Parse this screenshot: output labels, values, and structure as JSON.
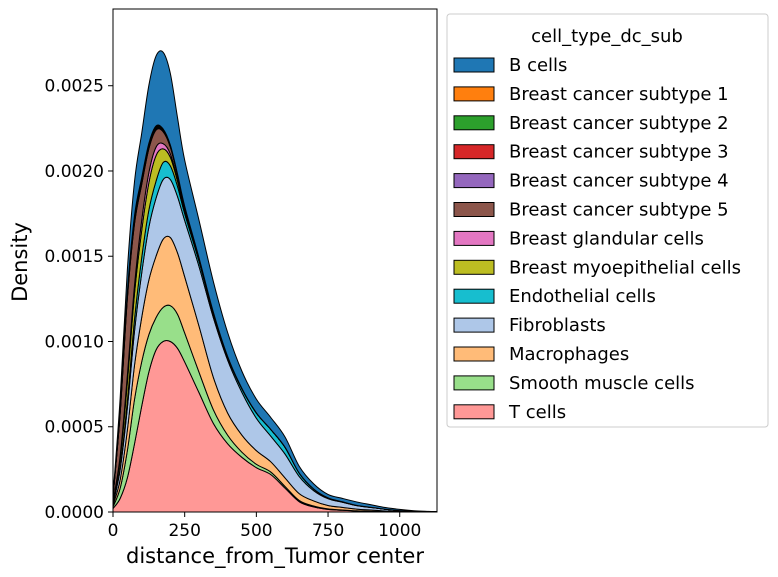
{
  "chart_data": {
    "type": "area",
    "stacked": true,
    "xlabel": "distance_from_Tumor center",
    "ylabel": "Density",
    "xlim": [
      0,
      1130
    ],
    "ylim": [
      0,
      0.00295
    ],
    "x_ticks": [
      0,
      250,
      500,
      750,
      1000
    ],
    "y_ticks": [
      0.0,
      0.0005,
      0.001,
      0.0015,
      0.002,
      0.0025
    ],
    "x_tick_labels": [
      "0",
      "250",
      "500",
      "750",
      "1000"
    ],
    "y_tick_labels": [
      "0.0000",
      "0.0005",
      "0.0010",
      "0.0015",
      "0.0020",
      "0.0025"
    ],
    "legend_title": "cell_type_dc_sub",
    "legend_position": "outside-right",
    "x": [
      0,
      25,
      50,
      75,
      100,
      125,
      150,
      175,
      200,
      225,
      250,
      300,
      350,
      400,
      450,
      500,
      550,
      600,
      650,
      700,
      750,
      800,
      850,
      900,
      950,
      1000,
      1050,
      1100,
      1130
    ],
    "series": [
      {
        "name": "T cells",
        "color": "#ff9896",
        "values": [
          2e-05,
          8e-05,
          0.0002,
          0.0004,
          0.00062,
          0.00082,
          0.00095,
          0.001,
          0.001,
          0.00096,
          0.00088,
          0.0007,
          0.00052,
          0.0004,
          0.00032,
          0.00026,
          0.00022,
          0.00014,
          6e-05,
          3e-05,
          1.5e-05,
          1e-05,
          6e-06,
          4e-06,
          2e-06,
          1e-06,
          5e-07,
          2e-07,
          1e-07
        ]
      },
      {
        "name": "Smooth muscle cells",
        "color": "#98df8a",
        "values": [
          1e-05,
          6e-05,
          0.00016,
          0.00026,
          0.00026,
          0.00022,
          0.00019,
          0.0002,
          0.00021,
          0.0002,
          0.00017,
          0.00012,
          8e-05,
          5e-05,
          3e-05,
          2e-05,
          1.5e-05,
          1e-05,
          7e-06,
          5e-06,
          3e-06,
          2e-06,
          1e-06,
          5e-07,
          2e-07,
          1e-07,
          0.0,
          0.0,
          0.0
        ]
      },
      {
        "name": "Macrophages",
        "color": "#ffbb78",
        "values": [
          1e-05,
          5e-05,
          0.00012,
          0.0002,
          0.00026,
          0.00032,
          0.00036,
          0.0004,
          0.0004,
          0.00036,
          0.00033,
          0.00027,
          0.00019,
          0.00013,
          0.0001,
          8e-05,
          6e-05,
          5e-05,
          4e-05,
          3e-05,
          2e-05,
          1.5e-05,
          1e-05,
          7e-06,
          4e-06,
          2e-06,
          1e-06,
          5e-07,
          2e-07
        ]
      },
      {
        "name": "Fibroblasts",
        "color": "#aec7e8",
        "values": [
          1e-05,
          6e-05,
          0.00013,
          0.0002,
          0.00026,
          0.00031,
          0.00034,
          0.00035,
          0.00034,
          0.00033,
          0.00033,
          0.00035,
          0.00035,
          0.00031,
          0.00025,
          0.00019,
          0.00015,
          0.00014,
          0.0001,
          6e-05,
          4e-05,
          3e-05,
          2e-05,
          1.5e-05,
          1e-05,
          5e-06,
          2e-06,
          1e-06,
          5e-07
        ]
      },
      {
        "name": "Endothelial cells",
        "color": "#17becf",
        "values": [
          0.0,
          1e-05,
          4e-05,
          7e-05,
          9e-05,
          0.0001,
          0.0001,
          0.0001,
          8e-05,
          6e-05,
          4e-05,
          3e-05,
          2e-05,
          1.5e-05,
          2e-05,
          3e-05,
          4e-05,
          4e-05,
          2e-05,
          1e-05,
          5e-06,
          3e-06,
          2e-06,
          1e-06,
          0.0,
          0.0,
          0.0,
          0.0,
          0.0
        ]
      },
      {
        "name": "Breast myoepithelial cells",
        "color": "#bcbd22",
        "values": [
          1e-05,
          5e-05,
          0.00011,
          0.00015,
          0.00016,
          0.00016,
          0.00015,
          8e-05,
          5e-05,
          3e-05,
          2e-05,
          1e-05,
          5e-06,
          3e-06,
          2e-06,
          1e-06,
          0.0,
          0.0,
          0.0,
          0.0,
          0.0,
          0.0,
          0.0,
          0.0,
          0.0,
          0.0,
          0.0,
          0.0,
          0.0
        ]
      },
      {
        "name": "Breast glandular cells",
        "color": "#e377c2",
        "values": [
          0.0,
          2e-05,
          4e-05,
          5e-05,
          6e-05,
          6e-05,
          5e-05,
          3e-05,
          2e-05,
          1e-05,
          5e-06,
          3e-06,
          2e-06,
          1e-06,
          0.0,
          0.0,
          0.0,
          0.0,
          0.0,
          0.0,
          0.0,
          0.0,
          0.0,
          0.0,
          0.0,
          0.0,
          0.0,
          0.0,
          0.0
        ]
      },
      {
        "name": "Breast cancer subtype 5",
        "color": "#8c564b",
        "values": [
          3e-05,
          0.00025,
          0.00045,
          0.00036,
          0.00021,
          0.00014,
          0.0001,
          7e-05,
          4e-05,
          2.5e-05,
          1.5e-05,
          8e-06,
          5e-06,
          3e-06,
          2e-06,
          1e-06,
          0.0,
          0.0,
          0.0,
          0.0,
          0.0,
          0.0,
          0.0,
          0.0,
          0.0,
          0.0,
          0.0,
          0.0,
          0.0
        ]
      },
      {
        "name": "Breast cancer subtype 4",
        "color": "#9467bd",
        "values": [
          0.0,
          5e-06,
          1e-05,
          1.2e-05,
          1e-05,
          8e-06,
          6e-06,
          4e-06,
          3e-06,
          2e-06,
          1e-06,
          0.0,
          0.0,
          0.0,
          0.0,
          0.0,
          0.0,
          0.0,
          0.0,
          0.0,
          0.0,
          0.0,
          0.0,
          0.0,
          0.0,
          0.0,
          0.0,
          0.0,
          0.0
        ]
      },
      {
        "name": "Breast cancer subtype 3",
        "color": "#d62728",
        "values": [
          0.0,
          5e-06,
          1e-05,
          1.2e-05,
          1e-05,
          8e-06,
          6e-06,
          4e-06,
          3e-06,
          2e-06,
          1e-06,
          0.0,
          0.0,
          0.0,
          0.0,
          0.0,
          0.0,
          0.0,
          0.0,
          0.0,
          0.0,
          0.0,
          0.0,
          0.0,
          0.0,
          0.0,
          0.0,
          0.0,
          0.0
        ]
      },
      {
        "name": "Breast cancer subtype 2",
        "color": "#2ca02c",
        "values": [
          0.0,
          5e-06,
          1e-05,
          1.2e-05,
          1e-05,
          8e-06,
          6e-06,
          4e-06,
          3e-06,
          2e-06,
          1e-06,
          0.0,
          0.0,
          0.0,
          0.0,
          0.0,
          0.0,
          0.0,
          0.0,
          0.0,
          0.0,
          0.0,
          0.0,
          0.0,
          0.0,
          0.0,
          0.0,
          0.0,
          0.0
        ]
      },
      {
        "name": "Breast cancer subtype 1",
        "color": "#ff7f0e",
        "values": [
          0.0,
          5e-06,
          1e-05,
          1.2e-05,
          1e-05,
          8e-06,
          6e-06,
          4e-06,
          3e-06,
          2e-06,
          1e-06,
          0.0,
          0.0,
          0.0,
          0.0,
          0.0,
          0.0,
          0.0,
          0.0,
          0.0,
          0.0,
          0.0,
          0.0,
          0.0,
          0.0,
          0.0,
          0.0,
          0.0,
          0.0
        ]
      },
      {
        "name": "B cells",
        "color": "#1f77b4",
        "values": [
          1e-05,
          7e-05,
          0.00013,
          0.0002,
          0.00026,
          0.00034,
          0.00041,
          0.00045,
          0.00042,
          0.00033,
          0.00027,
          0.00022,
          0.00018,
          0.00014,
          0.0001,
          8e-05,
          7e-05,
          6e-05,
          4e-05,
          3e-05,
          2e-05,
          2e-05,
          2e-05,
          1.5e-05,
          1e-05,
          7e-06,
          4e-06,
          2e-06,
          1e-06
        ]
      }
    ],
    "legend_entries": [
      {
        "label": "B cells",
        "color": "#1f77b4"
      },
      {
        "label": "Breast cancer subtype 1",
        "color": "#ff7f0e"
      },
      {
        "label": "Breast cancer subtype 2",
        "color": "#2ca02c"
      },
      {
        "label": "Breast cancer subtype 3",
        "color": "#d62728"
      },
      {
        "label": "Breast cancer subtype 4",
        "color": "#9467bd"
      },
      {
        "label": "Breast cancer subtype 5",
        "color": "#8c564b"
      },
      {
        "label": "Breast glandular cells",
        "color": "#e377c2"
      },
      {
        "label": "Breast myoepithelial cells",
        "color": "#bcbd22"
      },
      {
        "label": "Endothelial cells",
        "color": "#17becf"
      },
      {
        "label": "Fibroblasts",
        "color": "#aec7e8"
      },
      {
        "label": "Macrophages",
        "color": "#ffbb78"
      },
      {
        "label": "Smooth muscle cells",
        "color": "#98df8a"
      },
      {
        "label": "T cells",
        "color": "#ff9896"
      }
    ]
  }
}
